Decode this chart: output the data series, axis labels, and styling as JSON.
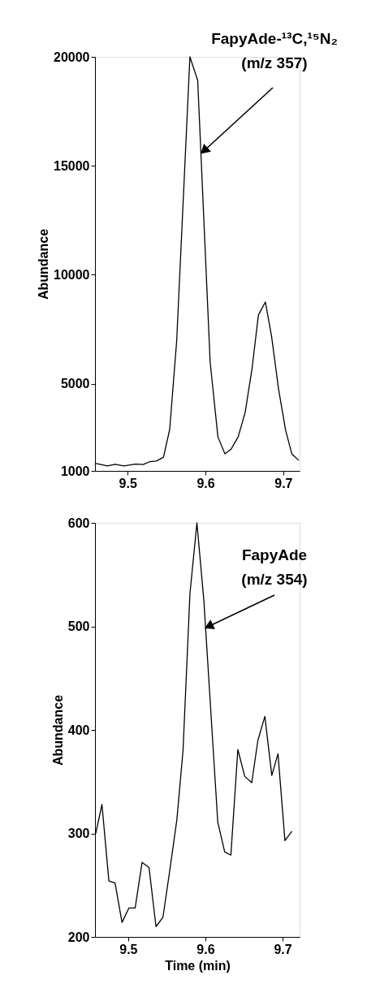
{
  "chart_data": [
    {
      "type": "line",
      "ylabel": "Abundance",
      "xlim": [
        9.458,
        9.721
      ],
      "ylim": [
        1000,
        20000
      ],
      "xticks": [
        9.5,
        9.6,
        9.7
      ],
      "yticks": [
        1000,
        5000,
        10000,
        15000,
        20000
      ],
      "grid": false,
      "series": [
        {
          "color": "#000000",
          "x": [
            9.458,
            9.474,
            9.484,
            9.495,
            9.51,
            9.52,
            9.528,
            9.537,
            9.546,
            9.554,
            9.563,
            9.58,
            9.59,
            9.606,
            9.616,
            9.625,
            9.633,
            9.642,
            9.651,
            9.66,
            9.668,
            9.677,
            9.685,
            9.694,
            9.703,
            9.711,
            9.72
          ],
          "values": [
            1350,
            1230,
            1300,
            1230,
            1310,
            1290,
            1420,
            1450,
            1630,
            2900,
            6970,
            20000,
            18920,
            6000,
            2560,
            1780,
            2000,
            2560,
            3680,
            5730,
            8150,
            8750,
            7160,
            4740,
            2870,
            1780,
            1480
          ]
        }
      ],
      "annotations": [
        {
          "text": "FapyAde-¹³C,¹⁵N₂\n(m/z 357)",
          "x": 9.594,
          "y": 15690
        }
      ]
    },
    {
      "type": "line",
      "xlabel": "Time (min)",
      "ylabel": "Abundance",
      "xlim": [
        9.457,
        9.722
      ],
      "ylim": [
        200,
        600
      ],
      "xticks": [
        9.5,
        9.6,
        9.7
      ],
      "yticks": [
        200,
        300,
        400,
        500,
        600
      ],
      "grid": false,
      "series": [
        {
          "color": "#000000",
          "x": [
            9.458,
            9.466,
            9.475,
            9.483,
            9.492,
            9.501,
            9.509,
            9.518,
            9.527,
            9.536,
            9.545,
            9.554,
            9.563,
            9.571,
            9.58,
            9.589,
            9.598,
            9.616,
            9.625,
            9.633,
            9.642,
            9.651,
            9.66,
            9.668,
            9.677,
            9.686,
            9.694,
            9.703,
            9.712
          ],
          "values": [
            300,
            328,
            254,
            252,
            214,
            228,
            228,
            272,
            267,
            210,
            219,
            265,
            313,
            380,
            532,
            600,
            525,
            311,
            282,
            279,
            381,
            355,
            349,
            390,
            413,
            356,
            377,
            293,
            302
          ]
        }
      ],
      "annotations": [
        {
          "text": "FapyAde\n(m/z 354)",
          "x": 9.6,
          "y": 500
        }
      ]
    }
  ]
}
